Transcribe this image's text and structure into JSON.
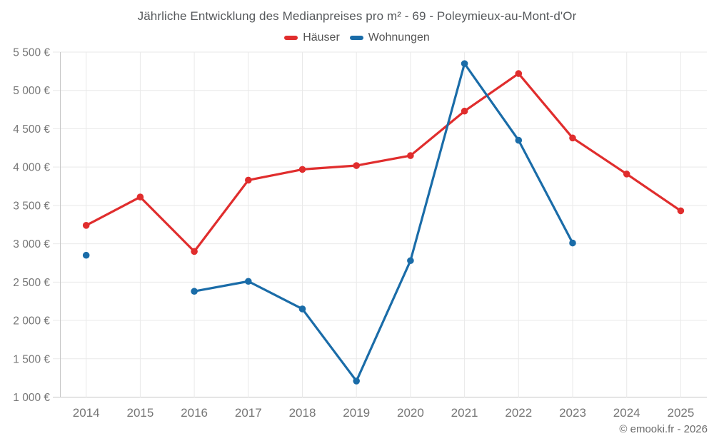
{
  "title": "Jährliche Entwicklung des Medianpreises pro m² - 69 - Poleymieux-au-Mont-d'Or",
  "footer": "© emooki.fr - 2026",
  "colors": {
    "hauser": "#e02d2d",
    "wohnungen": "#1a6ca8",
    "grid": "#e9e9e9",
    "axis": "#c6c6c6",
    "tick_text": "#767676",
    "title_text": "#56595c",
    "legend_text": "#555555",
    "footer_text": "#6a6a6a"
  },
  "chart_data": {
    "type": "line",
    "title": "Jährliche Entwicklung des Medianpreises pro m² - 69 - Poleymieux-au-Mont-d'Or",
    "xlabel": "",
    "ylabel": "",
    "x": [
      "2014",
      "2015",
      "2016",
      "2017",
      "2018",
      "2019",
      "2020",
      "2021",
      "2022",
      "2023",
      "2024",
      "2025"
    ],
    "series": [
      {
        "name": "Häuser",
        "color": "#e02d2d",
        "values": [
          3240,
          3610,
          2900,
          3830,
          3970,
          4020,
          4150,
          4730,
          5220,
          4380,
          3910,
          3430
        ]
      },
      {
        "name": "Wohnungen",
        "color": "#1a6ca8",
        "values": [
          2850,
          null,
          2380,
          2510,
          2150,
          1210,
          2780,
          5350,
          4350,
          3010,
          null,
          null
        ]
      }
    ],
    "ylim": [
      1000,
      5500
    ],
    "ytick_step": 500,
    "ytick_labels": [
      "1 000 €",
      "1 500 €",
      "2 000 €",
      "2 500 €",
      "3 000 €",
      "3 500 €",
      "4 000 €",
      "4 500 €",
      "5 000 €",
      "5 500 €"
    ],
    "grid": true,
    "legend_position": "top",
    "marker_radius": 4.8,
    "line_width": 3.2
  }
}
